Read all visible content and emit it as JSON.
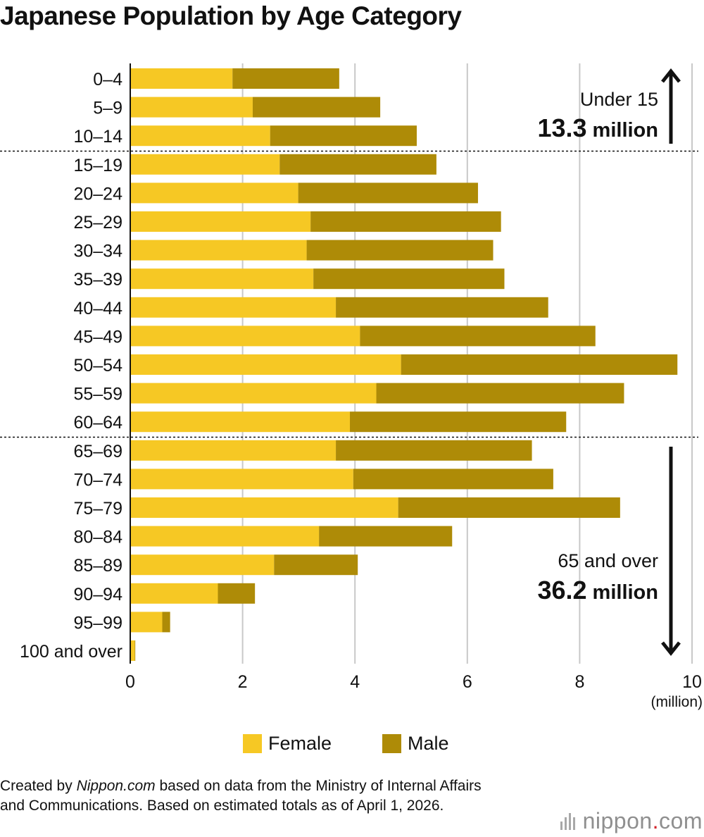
{
  "title": "Japanese Population by Age Category",
  "chart_data": {
    "type": "bar",
    "orientation": "horizontal",
    "stacked": true,
    "title": "Japanese Population by Age Category",
    "xlabel": "(million)",
    "ylabel": "",
    "xlim": [
      0,
      10
    ],
    "x_ticks": [
      "0",
      "2",
      "4",
      "6",
      "8",
      "10"
    ],
    "grid": true,
    "legend_position": "bottom",
    "categories": [
      "0–4",
      "5–9",
      "10–14",
      "15–19",
      "20–24",
      "25–29",
      "30–34",
      "35–39",
      "40–44",
      "45–49",
      "50–54",
      "55–59",
      "60–64",
      "65–69",
      "70–74",
      "75–79",
      "80–84",
      "85–89",
      "90–94",
      "95–99",
      "100 and over"
    ],
    "series": [
      {
        "name": "Female",
        "color": "#f6c824",
        "values": [
          1.82,
          2.18,
          2.49,
          2.66,
          2.99,
          3.21,
          3.14,
          3.26,
          3.66,
          4.09,
          4.82,
          4.38,
          3.91,
          3.66,
          3.97,
          4.77,
          3.36,
          2.56,
          1.56,
          0.57,
          0.08
        ]
      },
      {
        "name": "Male",
        "color": "#ae8b07",
        "values": [
          1.9,
          2.27,
          2.61,
          2.79,
          3.2,
          3.39,
          3.32,
          3.4,
          3.78,
          4.19,
          4.92,
          4.41,
          3.85,
          3.49,
          3.56,
          3.95,
          2.37,
          1.49,
          0.66,
          0.14,
          0.01
        ]
      }
    ],
    "annotations": [
      {
        "label": "Under 15",
        "value": "13.3",
        "unit": "million"
      },
      {
        "label": "65 and over",
        "value": "36.2",
        "unit": "million"
      }
    ]
  },
  "legend": {
    "female": "Female",
    "male": "Male"
  },
  "source": {
    "prefix": "Created by ",
    "site": "Nippon.com",
    "suffix": " based on data from the Ministry of Internal Affairs and Communications. Based on estimated totals as of April 1, 2026."
  },
  "logo": {
    "name": "nippon",
    "dot": ".",
    "tld": "com"
  }
}
